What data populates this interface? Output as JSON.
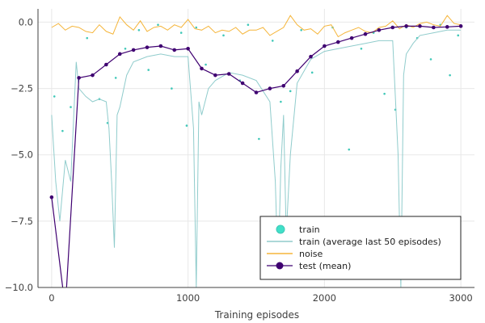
{
  "chart_data": {
    "type": "line",
    "title": "",
    "xlabel": "Training episodes",
    "ylabel": "",
    "xlim": [
      -100,
      3100
    ],
    "ylim": [
      -10,
      0.5
    ],
    "xticks": [
      0,
      1000,
      2000,
      3000
    ],
    "yticks": [
      0.0,
      -2.5,
      -5.0,
      -7.5,
      -10.0
    ],
    "xtick_labels": [
      "0",
      "1000",
      "2000",
      "3000"
    ],
    "ytick_labels": [
      "0.0",
      "−2.5",
      "−5.0",
      "−7.5",
      "−10.0"
    ],
    "grid": true,
    "legend_position": "bottom-right",
    "colors": {
      "train": "#40c8b8",
      "train_avg": "#90cccc",
      "noise": "#f5b53a",
      "test": "#3f0071",
      "grid": "#e8e8e8",
      "axis": "#404040"
    },
    "legend": {
      "train": "train",
      "train_avg": "train (average last 50 episodes)",
      "noise": "noise",
      "test": "test (mean)"
    },
    "series": [
      {
        "name": "test (mean)",
        "x": [
          0,
          100,
          200,
          300,
          400,
          500,
          600,
          700,
          800,
          900,
          1000,
          1100,
          1200,
          1300,
          1400,
          1500,
          1600,
          1700,
          1800,
          1900,
          2000,
          2100,
          2200,
          2300,
          2400,
          2500,
          2600,
          2700,
          2800,
          2900,
          3000
        ],
        "y": [
          -6.6,
          -10.8,
          -2.1,
          -2.0,
          -1.6,
          -1.2,
          -1.05,
          -0.95,
          -0.9,
          -1.05,
          -1.0,
          -1.75,
          -2.0,
          -1.95,
          -2.3,
          -2.65,
          -2.5,
          -2.4,
          -1.85,
          -1.3,
          -0.9,
          -0.75,
          -0.6,
          -0.45,
          -0.3,
          -0.2,
          -0.15,
          -0.15,
          -0.2,
          -0.18,
          -0.15
        ]
      },
      {
        "name": "noise",
        "x": [
          0,
          50,
          100,
          150,
          200,
          250,
          300,
          350,
          400,
          450,
          500,
          550,
          600,
          650,
          700,
          750,
          800,
          850,
          900,
          950,
          1000,
          1050,
          1100,
          1150,
          1200,
          1250,
          1300,
          1350,
          1400,
          1450,
          1500,
          1550,
          1600,
          1650,
          1700,
          1750,
          1800,
          1850,
          1900,
          1950,
          2000,
          2050,
          2100,
          2150,
          2200,
          2250,
          2300,
          2350,
          2400,
          2450,
          2500,
          2550,
          2600,
          2650,
          2700,
          2750,
          2800,
          2850,
          2900,
          2950,
          3000
        ],
        "y": [
          -0.2,
          -0.05,
          -0.3,
          -0.15,
          -0.2,
          -0.35,
          -0.4,
          -0.1,
          -0.35,
          -0.45,
          0.2,
          -0.1,
          -0.3,
          0.05,
          -0.35,
          -0.2,
          -0.15,
          -0.3,
          -0.1,
          -0.2,
          0.1,
          -0.25,
          -0.3,
          -0.15,
          -0.4,
          -0.3,
          -0.35,
          -0.2,
          -0.45,
          -0.3,
          -0.3,
          -0.2,
          -0.5,
          -0.35,
          -0.2,
          0.25,
          -0.1,
          -0.3,
          -0.25,
          -0.45,
          -0.15,
          -0.1,
          -0.55,
          -0.4,
          -0.3,
          -0.2,
          -0.35,
          -0.4,
          -0.2,
          -0.15,
          0.05,
          -0.25,
          -0.1,
          -0.2,
          -0.05,
          0.0,
          -0.1,
          -0.15,
          0.25,
          -0.05,
          -0.1
        ]
      },
      {
        "name": "train (average last 50 episodes)",
        "x": [
          0,
          30,
          60,
          100,
          140,
          180,
          200,
          250,
          300,
          350,
          400,
          420,
          440,
          460,
          480,
          500,
          550,
          600,
          700,
          800,
          900,
          1000,
          1040,
          1060,
          1080,
          1100,
          1150,
          1200,
          1300,
          1400,
          1500,
          1600,
          1640,
          1660,
          1680,
          1700,
          1720,
          1750,
          1800,
          1900,
          2000,
          2100,
          2200,
          2300,
          2400,
          2500,
          2540,
          2560,
          2580,
          2600,
          2650,
          2700,
          2800,
          2900,
          3000
        ],
        "y": [
          -3.5,
          -6.0,
          -7.5,
          -5.2,
          -6.0,
          -1.5,
          -2.5,
          -2.8,
          -3.0,
          -2.9,
          -3.0,
          -4.0,
          -6.0,
          -8.5,
          -3.5,
          -3.2,
          -2.0,
          -1.5,
          -1.3,
          -1.2,
          -1.3,
          -1.3,
          -4.0,
          -10.0,
          -3.0,
          -3.5,
          -2.5,
          -2.2,
          -1.9,
          -2.0,
          -2.2,
          -3.0,
          -6.0,
          -9.5,
          -5.5,
          -3.5,
          -8.0,
          -5.0,
          -2.3,
          -1.4,
          -1.1,
          -1.0,
          -0.9,
          -0.8,
          -0.7,
          -0.7,
          -5.0,
          -10.0,
          -2.0,
          -1.2,
          -0.8,
          -0.5,
          -0.4,
          -0.3,
          -0.3
        ]
      },
      {
        "name": "train",
        "x": [
          20,
          80,
          140,
          260,
          350,
          410,
          470,
          540,
          640,
          710,
          780,
          880,
          950,
          990,
          1060,
          1130,
          1260,
          1380,
          1440,
          1520,
          1620,
          1680,
          1750,
          1830,
          1910,
          2060,
          2180,
          2270,
          2360,
          2440,
          2520,
          2600,
          2680,
          2780,
          2850,
          2920,
          2980
        ],
        "y": [
          -2.8,
          -4.1,
          -3.2,
          -0.6,
          -2.9,
          -3.8,
          -2.1,
          -1.0,
          -0.3,
          -1.8,
          -0.1,
          -2.5,
          -0.4,
          -3.9,
          -0.2,
          -1.6,
          -0.5,
          -2.2,
          -0.1,
          -4.4,
          -0.7,
          -3.0,
          -2.6,
          -0.3,
          -1.9,
          -0.2,
          -4.8,
          -1.0,
          -0.4,
          -2.7,
          -3.3,
          -0.2,
          -0.6,
          -1.4,
          -0.1,
          -2.0,
          -0.5
        ]
      }
    ]
  }
}
